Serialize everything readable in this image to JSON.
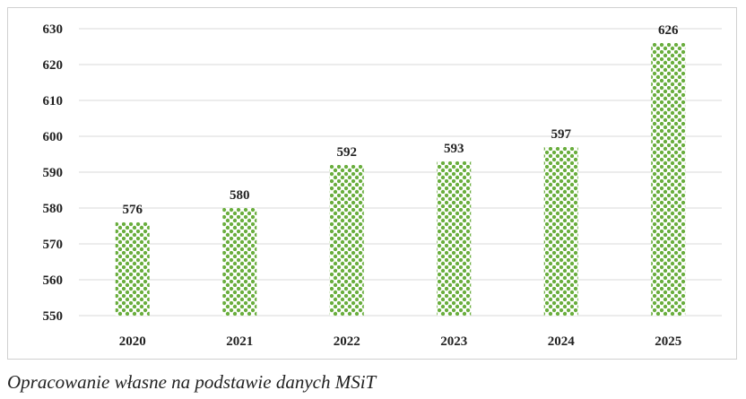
{
  "chart_data": {
    "type": "bar",
    "categories": [
      "2020",
      "2021",
      "2022",
      "2023",
      "2024",
      "2025"
    ],
    "values": [
      576,
      580,
      592,
      593,
      597,
      626
    ],
    "title": "",
    "xlabel": "",
    "ylabel": "",
    "ylim": [
      550,
      630
    ],
    "yticks": [
      550,
      560,
      570,
      580,
      590,
      600,
      610,
      620,
      630
    ],
    "grid": true,
    "data_labels": true,
    "bar_color": "#6aae3e",
    "bar_fill": "green dotted pattern"
  },
  "caption": "Opracowanie własne na podstawie danych MSiT"
}
